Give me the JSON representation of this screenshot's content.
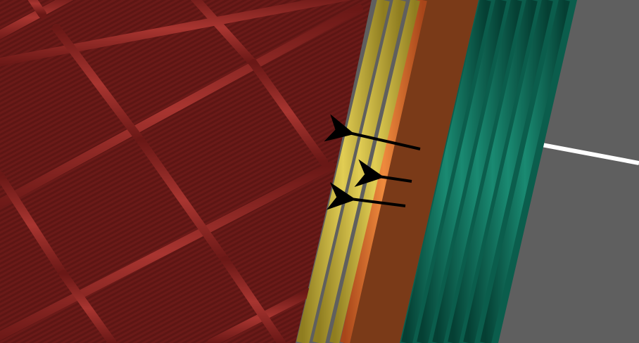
{
  "scene": {
    "type": "3D print toolpath preview (zoomed-in slicer view)",
    "colors": {
      "background_bed": "#5f5f5f",
      "infill": "#6b1a18",
      "infill_rib": "#8a2521",
      "external_perimeter": "#c9b13a",
      "perimeter_orange": "#d6692a",
      "perimeter_brown": "#7a3a18",
      "skirt": "#0b6a57",
      "arrows": "#000000",
      "white_line": "#ffffff"
    },
    "icons": [
      "arrow-left-icon",
      "arrow-left-icon",
      "arrow-left-icon"
    ]
  }
}
